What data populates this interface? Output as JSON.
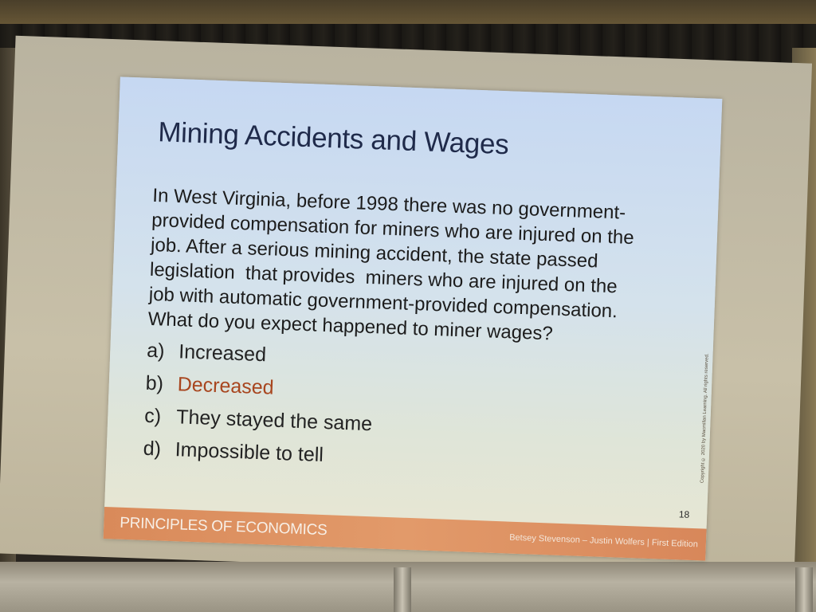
{
  "slide": {
    "title": "Mining Accidents and Wages",
    "question_lines": [
      "In West Virginia, before 1998 there was no government-",
      "provided compensation for miners who are injured on the",
      "job. After a serious mining accident, the state passed",
      "legislation  that provides  miners who are injured on the",
      "job with automatic government-provided compensation.",
      "What do you expect happened to miner wages?"
    ],
    "options": [
      {
        "letter": "a)",
        "text": "Increased"
      },
      {
        "letter": "b)",
        "text": "Decreased"
      },
      {
        "letter": "c)",
        "text": "They stayed the same"
      },
      {
        "letter": "d)",
        "text": "Impossible to tell"
      }
    ],
    "page_number": "18",
    "copyright": "Copyright © 2020 by Macmillan Learning. All rights reserved.",
    "footer_left": "PRINCIPLES OF ECONOMICS",
    "footer_right": "Betsey Stevenson – Justin Wolfers | First Edition",
    "highlight_color": "#a8461f",
    "footer_color": "#e0925f"
  }
}
